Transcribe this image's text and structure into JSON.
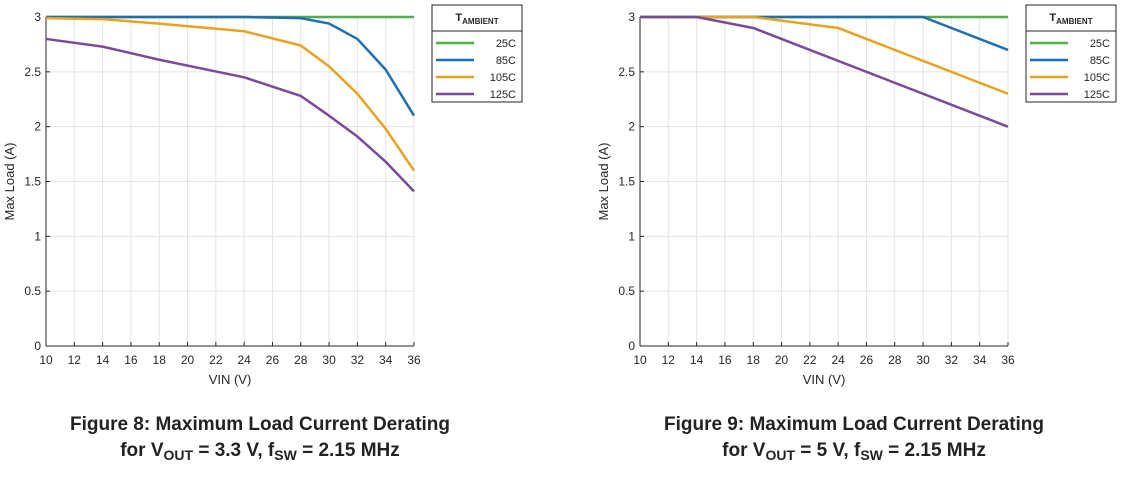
{
  "chart_data": [
    {
      "type": "line",
      "xlabel": "VIN (V)",
      "ylabel": "Max Load (A)",
      "xlim": [
        10,
        36
      ],
      "ylim": [
        0,
        3
      ],
      "xticks": [
        10,
        12,
        14,
        16,
        18,
        20,
        22,
        24,
        26,
        28,
        30,
        32,
        34,
        36
      ],
      "yticks": [
        0,
        0.5,
        1,
        1.5,
        2,
        2.5,
        3
      ],
      "xtick_labels": [
        "10",
        "12",
        "14",
        "16",
        "18",
        "20",
        "22",
        "24",
        "26",
        "28",
        "30",
        "32",
        "34",
        "36"
      ],
      "ytick_labels": [
        "0",
        "0.5",
        "1",
        "1.5",
        "2",
        "2.5",
        "3"
      ],
      "grid": true,
      "legend": {
        "title_main": "T",
        "title_sub": "AMBIENT",
        "placement": "top-right-outside"
      },
      "series": [
        {
          "name": "25C",
          "color": "#4daf4a",
          "x": [
            10,
            36
          ],
          "y": [
            3.0,
            3.0
          ]
        },
        {
          "name": "85C",
          "color": "#1f6fb0",
          "x": [
            10,
            14,
            24,
            28,
            30,
            32,
            34,
            36
          ],
          "y": [
            3.0,
            3.0,
            3.0,
            2.99,
            2.94,
            2.8,
            2.52,
            2.1
          ]
        },
        {
          "name": "105C",
          "color": "#e8a21d",
          "x": [
            10,
            14,
            18,
            24,
            28,
            30,
            32,
            34,
            36
          ],
          "y": [
            2.99,
            2.98,
            2.94,
            2.87,
            2.74,
            2.55,
            2.3,
            1.98,
            1.6
          ]
        },
        {
          "name": "125C",
          "color": "#7a4a9a",
          "x": [
            10,
            14,
            18,
            24,
            28,
            30,
            32,
            34,
            36
          ],
          "y": [
            2.8,
            2.73,
            2.61,
            2.45,
            2.28,
            2.1,
            1.91,
            1.68,
            1.41
          ]
        }
      ],
      "caption": {
        "line1": "Figure 8: Maximum Load Current Derating",
        "line2_parts": [
          "for V",
          "OUT",
          " = 3.3 V, f",
          "SW",
          " = 2.15 MHz"
        ]
      }
    },
    {
      "type": "line",
      "xlabel": "VIN (V)",
      "ylabel": "Max Load (A)",
      "xlim": [
        10,
        36
      ],
      "ylim": [
        0,
        3
      ],
      "xticks": [
        10,
        12,
        14,
        16,
        18,
        20,
        22,
        24,
        26,
        28,
        30,
        32,
        34,
        36
      ],
      "yticks": [
        0,
        0.5,
        1,
        1.5,
        2,
        2.5,
        3
      ],
      "xtick_labels": [
        "10",
        "12",
        "14",
        "16",
        "18",
        "20",
        "22",
        "24",
        "26",
        "28",
        "30",
        "32",
        "34",
        "36"
      ],
      "ytick_labels": [
        "0",
        "0.5",
        "1",
        "1.5",
        "2",
        "2.5",
        "3"
      ],
      "grid": true,
      "legend": {
        "title_main": "T",
        "title_sub": "AMBIENT",
        "placement": "top-right-outside"
      },
      "series": [
        {
          "name": "25C",
          "color": "#4daf4a",
          "x": [
            10,
            36
          ],
          "y": [
            3.0,
            3.0
          ]
        },
        {
          "name": "85C",
          "color": "#1f6fb0",
          "x": [
            10,
            30,
            36
          ],
          "y": [
            3.0,
            3.0,
            2.7
          ]
        },
        {
          "name": "105C",
          "color": "#e8a21d",
          "x": [
            10,
            18,
            24,
            36
          ],
          "y": [
            3.0,
            3.0,
            2.9,
            2.3
          ]
        },
        {
          "name": "125C",
          "color": "#7a4a9a",
          "x": [
            10,
            14,
            18,
            36
          ],
          "y": [
            3.0,
            3.0,
            2.9,
            2.0
          ]
        }
      ],
      "caption": {
        "line1": "Figure 9: Maximum Load Current Derating",
        "line2_parts": [
          "for V",
          "OUT",
          " = 5 V, f",
          "SW",
          " = 2.15 MHz"
        ]
      }
    }
  ]
}
